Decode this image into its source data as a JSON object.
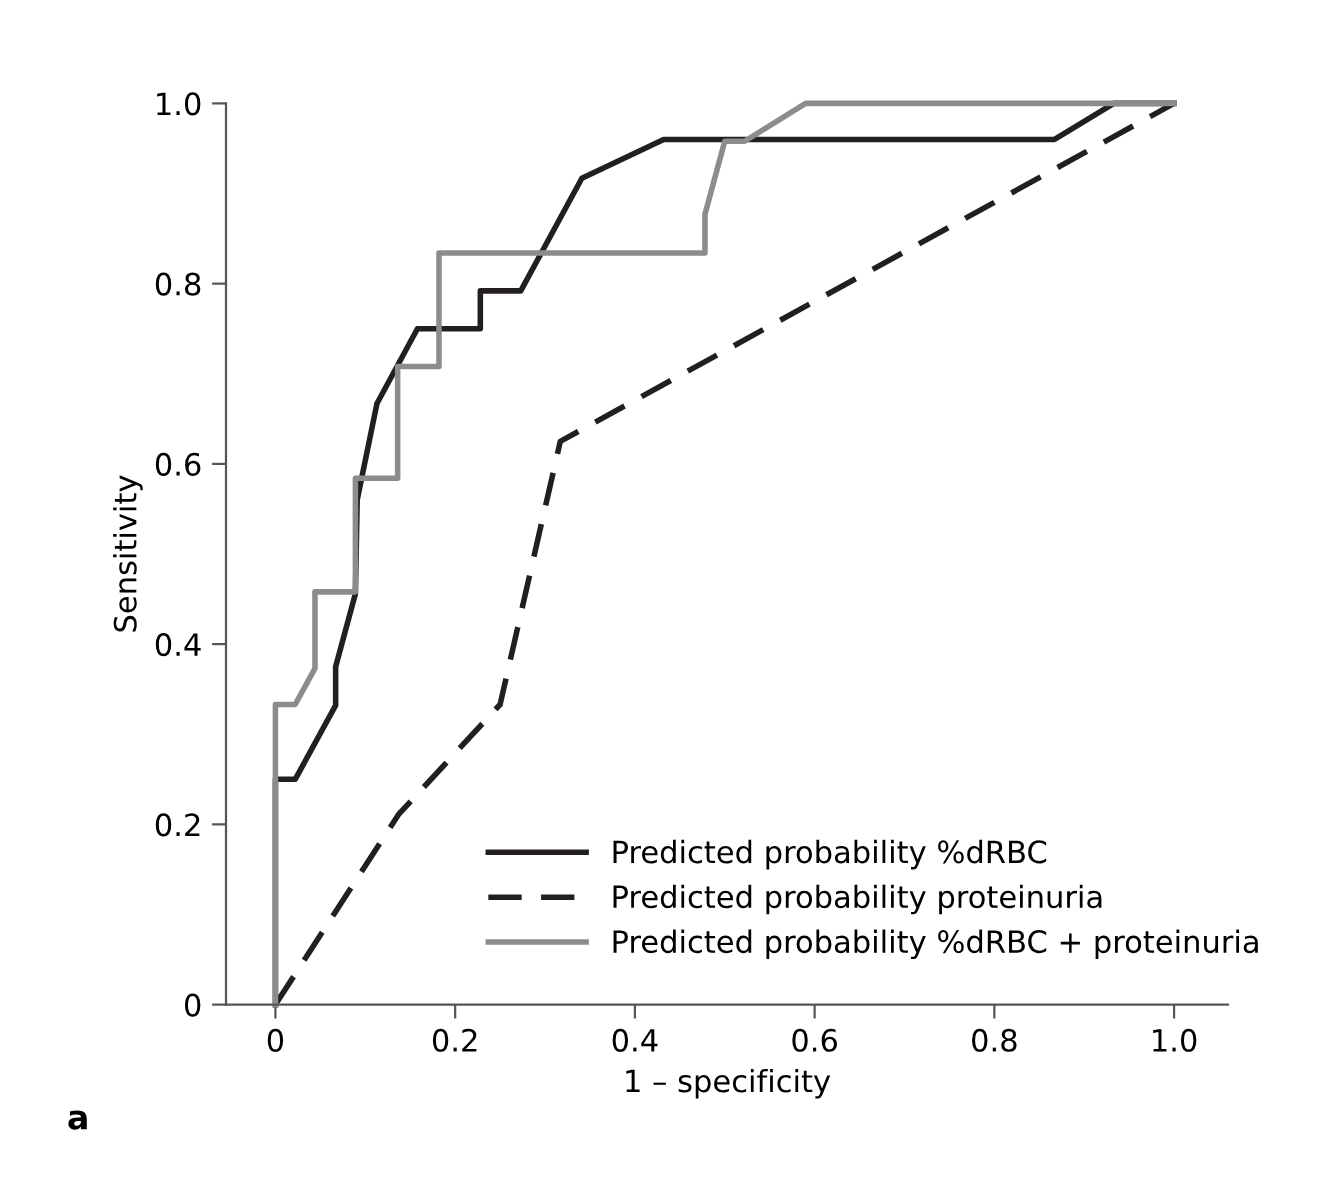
{
  "chart_data": {
    "type": "line",
    "xlabel": "1 – specificity",
    "ylabel": "Sensitivity",
    "annotations": [
      "a"
    ],
    "xlim": [
      -0.055,
      1.06
    ],
    "ylim": [
      0,
      1.0
    ],
    "xticks": [
      0,
      0.2,
      0.4,
      0.6,
      0.8,
      {
        "value": 1.0,
        "label": "1.0"
      }
    ],
    "yticks": [
      0,
      0.2,
      0.4,
      0.6,
      0.8,
      {
        "value": 1.0,
        "label": "1.0"
      }
    ],
    "grid": false,
    "legend": "bottom right",
    "marker": "none",
    "series": [
      {
        "name": "Predicted probability %dRBC",
        "color": "#231f20",
        "line_style": "solid",
        "x": [
          0,
          0,
          0.022,
          0.067,
          0.067,
          0.089,
          0.091,
          0.113,
          0.158,
          0.228,
          0.228,
          0.273,
          0.341,
          0.432,
          0.867,
          0.933,
          1.0
        ],
        "values": [
          0,
          0.25,
          0.25,
          0.332,
          0.375,
          0.456,
          0.56,
          0.667,
          0.75,
          0.75,
          0.792,
          0.792,
          0.917,
          0.96,
          0.96,
          1.0,
          1.0
        ]
      },
      {
        "name": "Predicted probability proteinuria",
        "color": "#231f20",
        "line_style": "dashed",
        "x": [
          0,
          0.137,
          0.25,
          0.317,
          1.0
        ],
        "values": [
          0,
          0.211,
          0.333,
          0.625,
          1.0
        ]
      },
      {
        "name": "Predicted probability %dRBC + proteinuria",
        "color": "#8c8c8c",
        "line_style": "solid",
        "x": [
          0,
          0,
          0.022,
          0.044,
          0.044,
          0.089,
          0.089,
          0.136,
          0.136,
          0.182,
          0.182,
          0.478,
          0.478,
          0.5,
          0.522,
          0.59,
          1.0
        ],
        "values": [
          0,
          0.333,
          0.333,
          0.373,
          0.458,
          0.458,
          0.584,
          0.584,
          0.708,
          0.708,
          0.834,
          0.834,
          0.877,
          0.958,
          0.958,
          1.0,
          1.0
        ]
      }
    ]
  }
}
